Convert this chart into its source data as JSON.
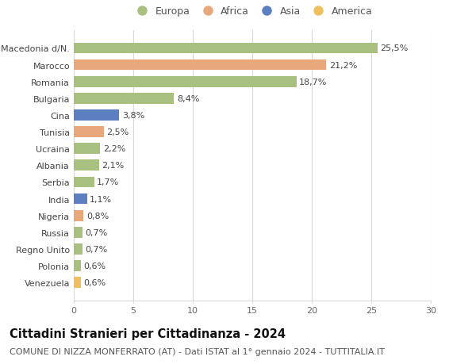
{
  "categories": [
    "Macedonia d/N.",
    "Marocco",
    "Romania",
    "Bulgaria",
    "Cina",
    "Tunisia",
    "Ucraina",
    "Albania",
    "Serbia",
    "India",
    "Nigeria",
    "Russia",
    "Regno Unito",
    "Polonia",
    "Venezuela"
  ],
  "values": [
    25.5,
    21.2,
    18.7,
    8.4,
    3.8,
    2.5,
    2.2,
    2.1,
    1.7,
    1.1,
    0.8,
    0.7,
    0.7,
    0.6,
    0.6
  ],
  "labels": [
    "25,5%",
    "21,2%",
    "18,7%",
    "8,4%",
    "3,8%",
    "2,5%",
    "2,2%",
    "2,1%",
    "1,7%",
    "1,1%",
    "0,8%",
    "0,7%",
    "0,7%",
    "0,6%",
    "0,6%"
  ],
  "continents": [
    "Europa",
    "Africa",
    "Europa",
    "Europa",
    "Asia",
    "Africa",
    "Europa",
    "Europa",
    "Europa",
    "Asia",
    "Africa",
    "Europa",
    "Europa",
    "Europa",
    "America"
  ],
  "colors": {
    "Europa": "#a8c080",
    "Africa": "#e8a87c",
    "Asia": "#5b7fc1",
    "America": "#f0c060"
  },
  "xlim": [
    0,
    30
  ],
  "xticks": [
    0,
    5,
    10,
    15,
    20,
    25,
    30
  ],
  "title": "Cittadini Stranieri per Cittadinanza - 2024",
  "subtitle": "COMUNE DI NIZZA MONFERRATO (AT) - Dati ISTAT al 1° gennaio 2024 - TUTTITALIA.IT",
  "background_color": "#ffffff",
  "grid_color": "#d8d8d8",
  "bar_height": 0.65,
  "title_fontsize": 10.5,
  "subtitle_fontsize": 8,
  "legend_fontsize": 9,
  "tick_fontsize": 8,
  "label_fontsize": 8
}
